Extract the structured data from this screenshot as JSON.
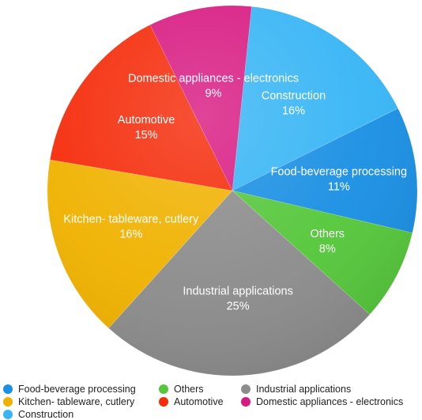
{
  "chart_data": {
    "type": "pie",
    "title": "",
    "slices": [
      {
        "label": "Construction",
        "value": 16,
        "value_label": "16%",
        "color": "#37b5f5"
      },
      {
        "label": "Food-beverage processing",
        "value": 11,
        "value_label": "11%",
        "color": "#1a8fe3"
      },
      {
        "label": "Others",
        "value": 8,
        "value_label": "8%",
        "color": "#55c73b"
      },
      {
        "label": "Industrial applications",
        "value": 25,
        "value_label": "25%",
        "color": "#8c8c8c"
      },
      {
        "label": "Kitchen- tableware, cutlery",
        "value": 16,
        "value_label": "16%",
        "color": "#f0b200"
      },
      {
        "label": "Automotive",
        "value": 15,
        "value_label": "15%",
        "color": "#f52b0a"
      },
      {
        "label": "Domestic appliances - electronics",
        "value": 9,
        "value_label": "9%",
        "color": "#d81b82"
      }
    ],
    "legend": {
      "placement": "bottom",
      "entries": [
        "Food-beverage processing",
        "Others",
        "Industrial applications",
        "Kitchen- tableware, cutlery",
        "Automotive",
        "Domestic appliances - electronics",
        "Construction"
      ]
    }
  }
}
